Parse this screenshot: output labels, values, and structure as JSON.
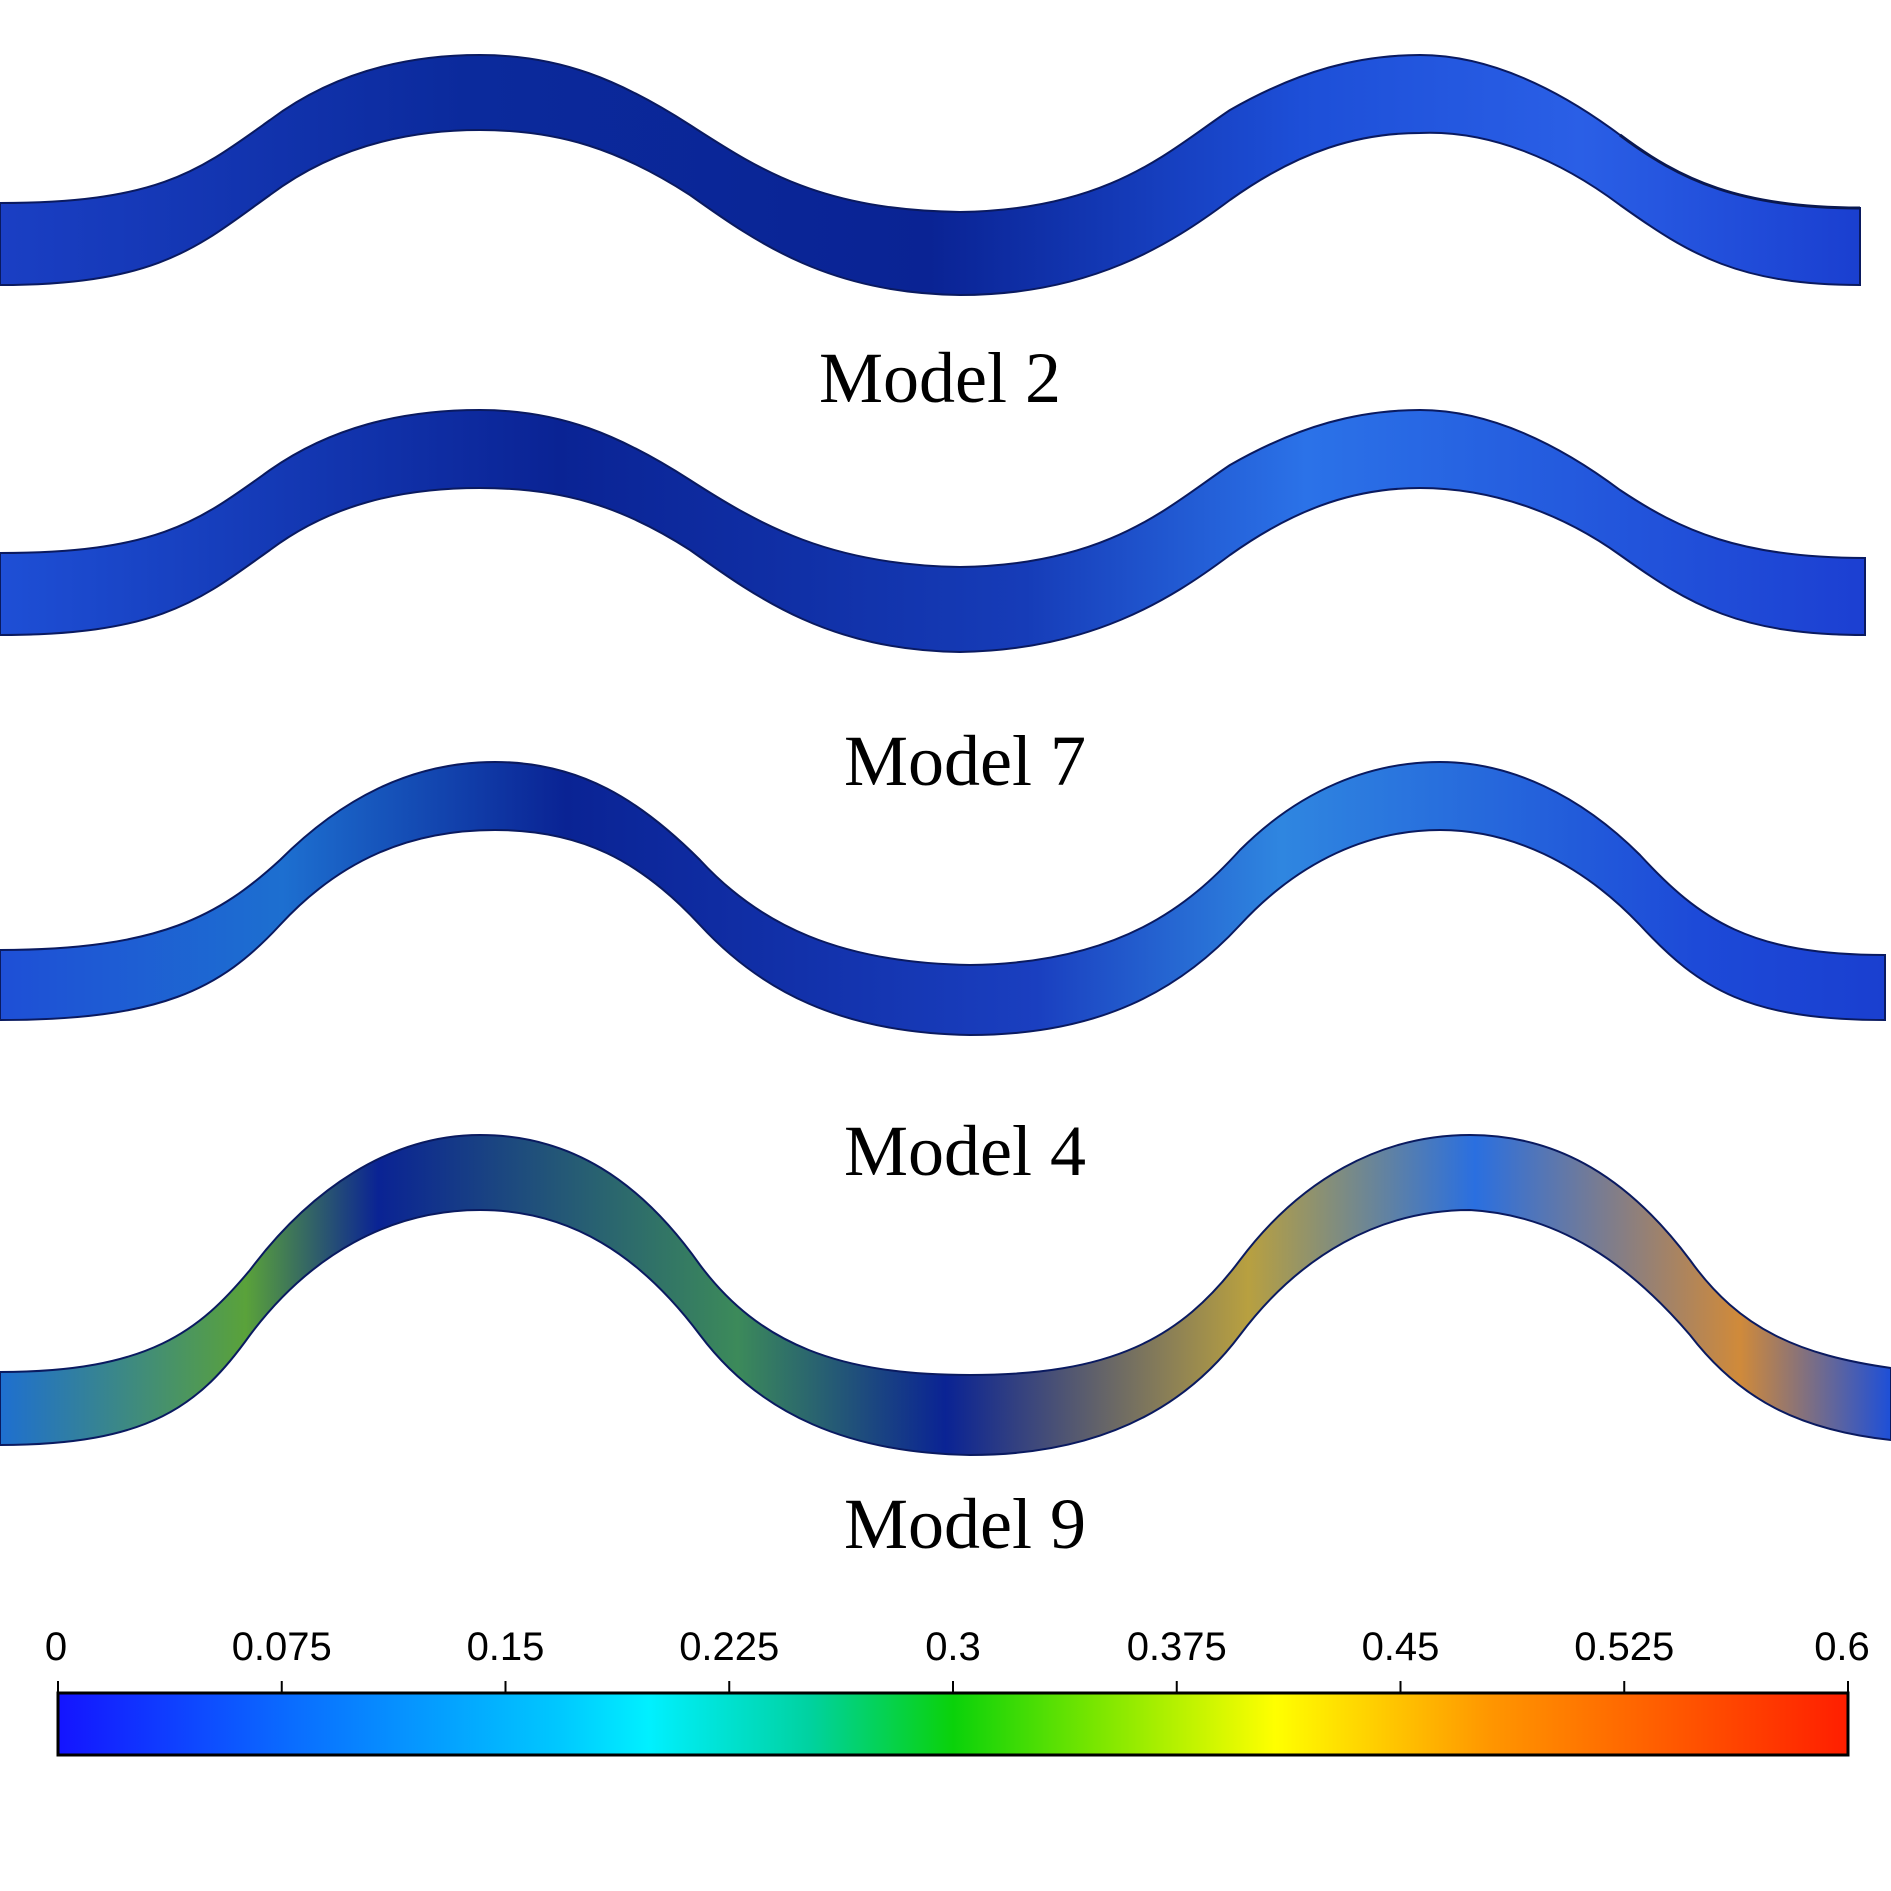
{
  "panels": [
    {
      "label": null
    },
    {
      "label": "Model 2"
    },
    {
      "label": "Model 7"
    },
    {
      "label": "Model 4"
    }
  ],
  "captions": [
    "Model 2",
    "Model 7",
    "Model 4",
    "Model 9"
  ],
  "colorbar": {
    "ticks": [
      "0",
      "0.075",
      "0.15",
      "0.225",
      "0.3",
      "0.375",
      "0.45",
      "0.525",
      "0.6"
    ],
    "range": [
      0,
      0.6
    ],
    "colors": [
      "#1414ff",
      "#0a6cff",
      "#00f0ff",
      "#00d24b",
      "#0ad20a",
      "#ffff00",
      "#ff9600",
      "#ff1e00"
    ]
  }
}
